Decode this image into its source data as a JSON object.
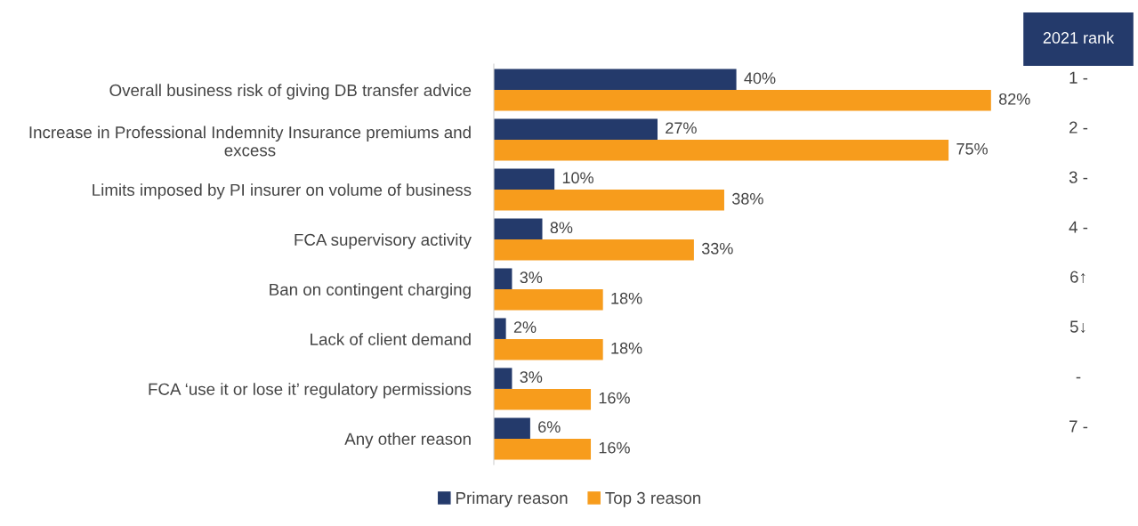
{
  "chart_data": {
    "type": "bar",
    "orientation": "horizontal",
    "categories": [
      "Overall business risk of giving DB transfer advice",
      "Increase in Professional Indemnity Insurance premiums and\nexcess",
      "Limits imposed by PI insurer on volume of business",
      "FCA supervisory activity",
      "Ban on contingent charging",
      "Lack of client demand",
      "FCA ‘use it or lose it’ regulatory permissions",
      "Any other reason"
    ],
    "series": [
      {
        "name": "Primary reason",
        "color": "#243a6b",
        "values": [
          40,
          27,
          10,
          8,
          3,
          2,
          3,
          6
        ],
        "value_labels": [
          "40%",
          "27%",
          "10%",
          "8%",
          "3%",
          "2%",
          "3%",
          "6%"
        ]
      },
      {
        "name": "Top 3 reason",
        "color": "#f79c1c",
        "values": [
          82,
          75,
          38,
          33,
          18,
          18,
          16,
          16
        ],
        "value_labels": [
          "82%",
          "75%",
          "38%",
          "33%",
          "18%",
          "18%",
          "16%",
          "16%"
        ]
      }
    ],
    "legend": "bottom",
    "grid": false,
    "tick_labels": "y",
    "annotations": [
      "2021 rank",
      "1 -",
      "2 -",
      "3 -",
      "4 -",
      "6↑",
      "5↓",
      "-",
      "7 -"
    ]
  }
}
